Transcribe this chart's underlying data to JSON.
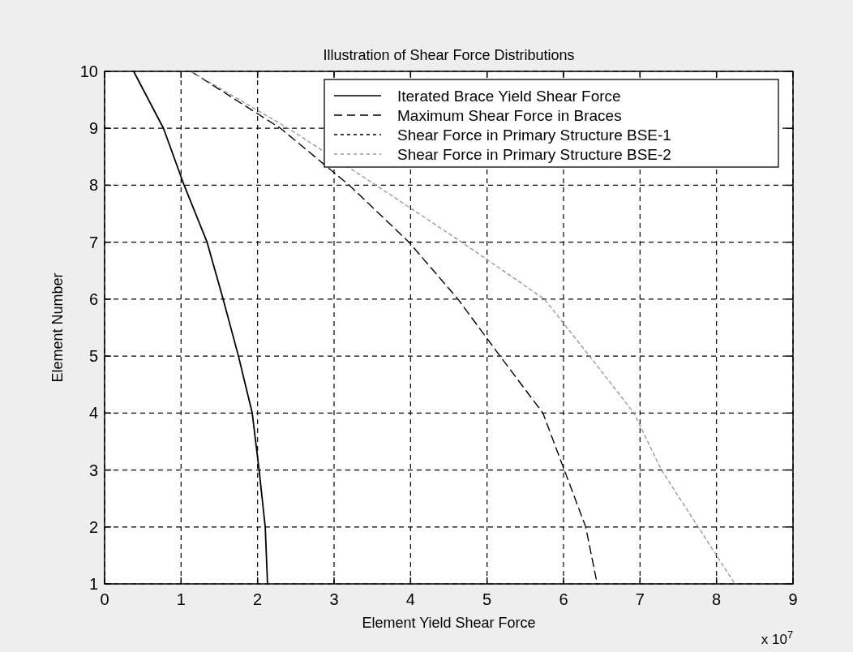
{
  "chart_data": {
    "type": "line",
    "title": "Illustration of Shear Force Distributions",
    "xlabel": "Element Yield Shear Force",
    "ylabel": "Element Number",
    "xlim": [
      0,
      9
    ],
    "xticks": [
      0,
      1,
      2,
      3,
      4,
      5,
      6,
      7,
      8,
      9
    ],
    "ylim": [
      1,
      10
    ],
    "yticks": [
      1,
      2,
      3,
      4,
      5,
      6,
      7,
      8,
      9,
      10
    ],
    "grid": true,
    "legend": "top right",
    "marker": "none",
    "annotations": [
      "x 10$^{7}$"
    ],
    "series": [
      {
        "name": "Iterated Brace Yield Shear Force",
        "color": "#000000",
        "line_style": "solid",
        "x": [
          0.38,
          0.77,
          1.04,
          1.34,
          1.55,
          1.75,
          1.93,
          2.02,
          2.1,
          2.13
        ],
        "values": [
          10,
          9,
          8,
          7,
          6,
          5,
          4,
          3,
          2,
          1
        ]
      },
      {
        "name": "Maximum Shear Force in Braces",
        "color": "#000000",
        "line_style": "dashed",
        "x": [
          1.13,
          2.3,
          3.2,
          3.98,
          4.62,
          5.17,
          5.73,
          6.01,
          6.29,
          6.44
        ],
        "values": [
          10,
          9,
          8,
          7,
          6,
          5,
          4,
          3,
          2,
          1
        ]
      },
      {
        "name": "Shear Force in Primary Structure BSE-1",
        "color": "#000000",
        "line_style": "dotted",
        "x": [
          null,
          null,
          null,
          null,
          null,
          null,
          null,
          null,
          null,
          null
        ],
        "values": [
          null,
          null,
          null,
          null,
          null,
          null,
          null,
          null,
          null,
          null
        ]
      },
      {
        "name": "Shear Force in Primary Structure BSE-2",
        "color": "#999999",
        "line_style": "dotted",
        "x": [
          1.13,
          2.4,
          3.55,
          4.67,
          5.75,
          6.34,
          6.92,
          7.28,
          7.76,
          8.24
        ],
        "values": [
          10,
          9,
          8,
          7,
          6,
          5,
          4,
          3,
          2,
          1
        ]
      }
    ]
  }
}
